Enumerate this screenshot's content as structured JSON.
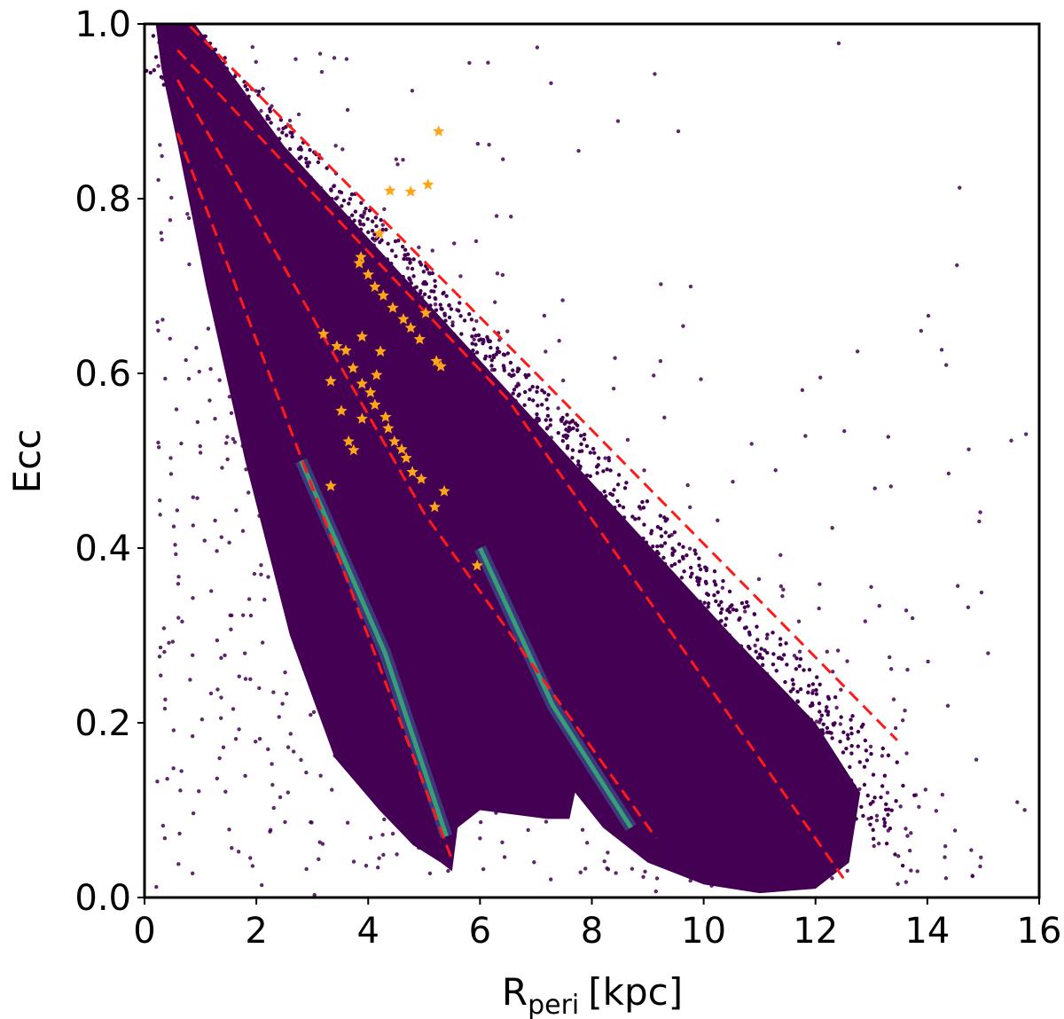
{
  "chart_data": {
    "type": "scatter",
    "xlabel": "R",
    "xlabel_sub": "peri",
    "xlabel_unit": "[kpc]",
    "ylabel": "Ecc",
    "xlim": [
      0,
      16
    ],
    "ylim": [
      0.0,
      1.0
    ],
    "x_ticks": [
      "0",
      "2",
      "4",
      "6",
      "8",
      "10",
      "12",
      "14",
      "16"
    ],
    "y_ticks": [
      "0.0",
      "0.2",
      "0.4",
      "0.6",
      "0.8",
      "1.0"
    ],
    "grid": false,
    "background_density": {
      "colormap": "viridis",
      "low_color": "#440154",
      "high_color": "#35b779"
    },
    "dashed_lines": {
      "color": "#ff1a1a",
      "lines": [
        [
          [
            0.59,
            0.875
          ],
          [
            3.0,
            0.47
          ],
          [
            5.5,
            0.043
          ]
        ],
        [
          [
            0.59,
            0.936
          ],
          [
            5.0,
            0.44
          ],
          [
            9.15,
            0.068
          ]
        ],
        [
          [
            0.59,
            0.97
          ],
          [
            6.5,
            0.57
          ],
          [
            12.5,
            0.022
          ]
        ],
        [
          [
            0.82,
            0.997
          ],
          [
            7.0,
            0.6
          ],
          [
            13.46,
            0.18
          ]
        ]
      ]
    },
    "stars": {
      "color": "#ffa51a",
      "points": [
        [
          5.26,
          0.877
        ],
        [
          4.39,
          0.809
        ],
        [
          4.76,
          0.808
        ],
        [
          5.07,
          0.816
        ],
        [
          4.2,
          0.76
        ],
        [
          3.87,
          0.733
        ],
        [
          3.84,
          0.726
        ],
        [
          4.0,
          0.713
        ],
        [
          4.12,
          0.699
        ],
        [
          4.27,
          0.689
        ],
        [
          4.44,
          0.675
        ],
        [
          5.03,
          0.669
        ],
        [
          4.63,
          0.662
        ],
        [
          4.76,
          0.652
        ],
        [
          4.92,
          0.639
        ],
        [
          5.22,
          0.614
        ],
        [
          5.3,
          0.608
        ],
        [
          3.2,
          0.645
        ],
        [
          3.44,
          0.631
        ],
        [
          3.6,
          0.626
        ],
        [
          3.89,
          0.642
        ],
        [
          4.22,
          0.625
        ],
        [
          3.73,
          0.606
        ],
        [
          4.15,
          0.598
        ],
        [
          3.33,
          0.591
        ],
        [
          3.89,
          0.588
        ],
        [
          4.04,
          0.578
        ],
        [
          4.12,
          0.564
        ],
        [
          3.52,
          0.557
        ],
        [
          3.89,
          0.548
        ],
        [
          4.31,
          0.55
        ],
        [
          4.36,
          0.537
        ],
        [
          3.65,
          0.522
        ],
        [
          3.74,
          0.512
        ],
        [
          4.47,
          0.522
        ],
        [
          4.6,
          0.513
        ],
        [
          4.68,
          0.503
        ],
        [
          4.79,
          0.487
        ],
        [
          4.95,
          0.479
        ],
        [
          3.33,
          0.471
        ],
        [
          5.36,
          0.465
        ],
        [
          5.19,
          0.447
        ],
        [
          5.95,
          0.38
        ]
      ]
    }
  }
}
